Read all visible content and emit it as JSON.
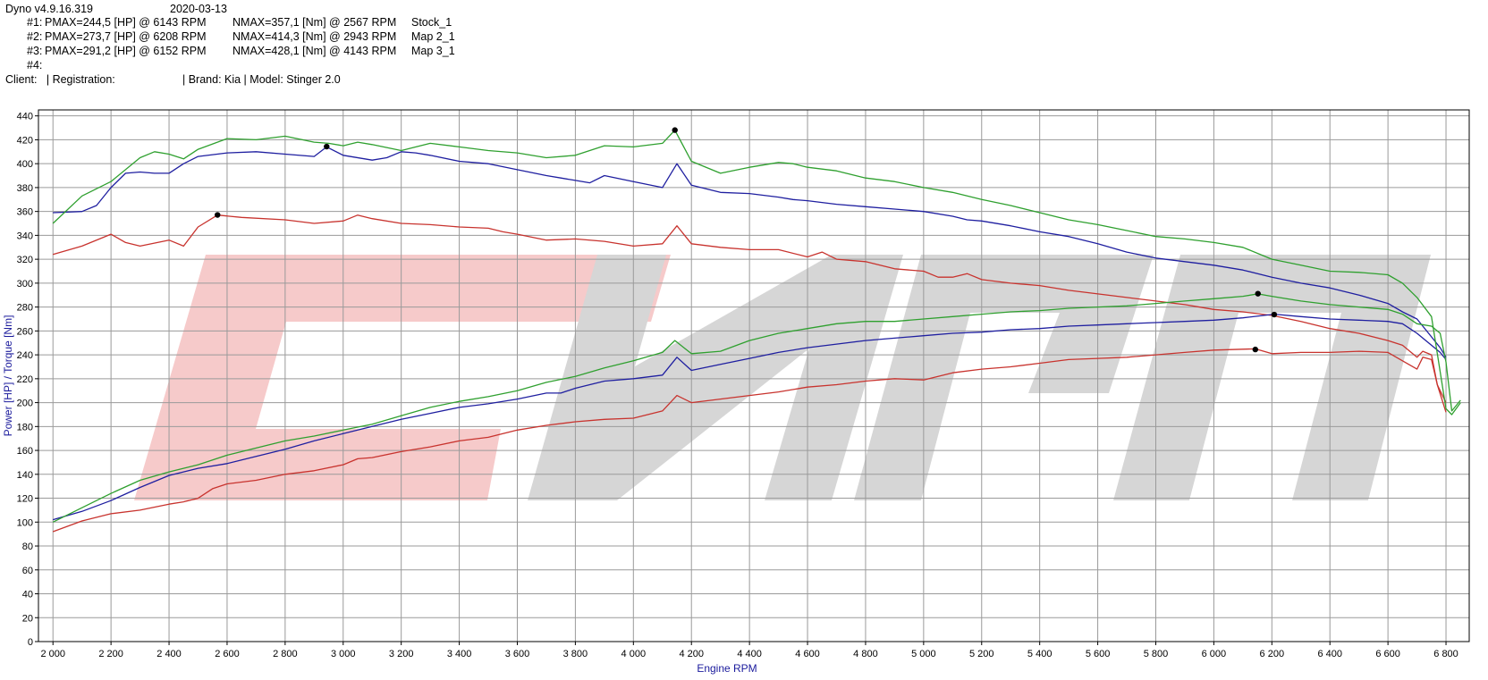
{
  "header": {
    "app_version": "Dyno v4.9.16.319",
    "date": "2020-03-13",
    "runs": [
      {
        "id": "#1:",
        "pmax": "PMAX=244,5 [HP] @ 6143 RPM",
        "nmax": "NMAX=357,1 [Nm] @ 2567 RPM",
        "name": "Stock_1"
      },
      {
        "id": "#2:",
        "pmax": "PMAX=273,7 [HP] @ 6208 RPM",
        "nmax": "NMAX=414,3 [Nm] @ 2943 RPM",
        "name": "Map 2_1"
      },
      {
        "id": "#3:",
        "pmax": "PMAX=291,2 [HP] @ 6152 RPM",
        "nmax": "NMAX=428,1 [Nm] @ 4143 RPM",
        "name": "Map 3_1"
      },
      {
        "id": "#4:",
        "pmax": "",
        "nmax": "",
        "name": ""
      }
    ],
    "client_line": "Client:   | Registration:",
    "vehicle_line": "| Brand: Kia | Model: Stinger 2.0"
  },
  "colors": {
    "run1": "#c8332e",
    "run2": "#1f1fa0",
    "run3": "#2fa02f",
    "grid": "#9a9a9a",
    "watermark_red": "#f6caca",
    "watermark_gray": "#d6d6d6",
    "axis_title": "#1a1a9c"
  },
  "chart_data": {
    "type": "line",
    "xlabel": "Engine RPM",
    "ylabel": "Power [HP] / Torque [Nm]",
    "xlim": [
      1950,
      6880
    ],
    "ylim": [
      0,
      445
    ],
    "x_ticks": [
      2000,
      2200,
      2400,
      2600,
      2800,
      3000,
      3200,
      3400,
      3600,
      3800,
      4000,
      4200,
      4400,
      4600,
      4800,
      5000,
      5200,
      5400,
      5600,
      5800,
      6000,
      6200,
      6400,
      6600,
      6800
    ],
    "x_tick_labels": [
      "2 000",
      "2 200",
      "2 400",
      "2 600",
      "2 800",
      "3 000",
      "3 200",
      "3 400",
      "3 600",
      "3 800",
      "4 000",
      "4 200",
      "4 400",
      "4 600",
      "4 800",
      "5 000",
      "5 200",
      "5 400",
      "5 600",
      "5 800",
      "6 000",
      "6 200",
      "6 400",
      "6 600",
      "6 800"
    ],
    "y_ticks": [
      0,
      20,
      40,
      60,
      80,
      100,
      120,
      140,
      160,
      180,
      200,
      220,
      240,
      260,
      280,
      300,
      320,
      340,
      360,
      380,
      400,
      420,
      440
    ],
    "grid": true,
    "series": [
      {
        "run": "run1",
        "kind": "torque",
        "x": [
          2000,
          2100,
          2200,
          2250,
          2300,
          2400,
          2450,
          2500,
          2567,
          2650,
          2800,
          2900,
          3000,
          3050,
          3100,
          3200,
          3300,
          3400,
          3500,
          3550,
          3600,
          3700,
          3800,
          3900,
          4000,
          4100,
          4150,
          4200,
          4300,
          4400,
          4500,
          4600,
          4650,
          4700,
          4800,
          4900,
          5000,
          5050,
          5100,
          5150,
          5200,
          5300,
          5400,
          5500,
          5600,
          5700,
          5800,
          5900,
          6000,
          6100,
          6200,
          6300,
          6400,
          6500,
          6600,
          6650,
          6700,
          6720,
          6750,
          6770,
          6800
        ],
        "y": [
          324,
          331,
          341,
          334,
          331,
          336,
          331,
          347,
          357,
          355,
          353,
          350,
          352,
          357,
          354,
          350,
          349,
          347,
          346,
          343,
          341,
          336,
          337,
          335,
          331,
          333,
          348,
          333,
          330,
          328,
          328,
          322,
          326,
          320,
          318,
          312,
          310,
          305,
          305,
          308,
          303,
          300,
          298,
          294,
          291,
          288,
          285,
          282,
          278,
          276,
          273,
          268,
          262,
          258,
          252,
          248,
          238,
          243,
          240,
          215,
          200
        ]
      },
      {
        "run": "run1",
        "kind": "power",
        "x": [
          2000,
          2100,
          2200,
          2300,
          2400,
          2450,
          2500,
          2550,
          2600,
          2700,
          2800,
          2900,
          3000,
          3050,
          3100,
          3200,
          3300,
          3400,
          3500,
          3600,
          3700,
          3800,
          3900,
          4000,
          4100,
          4150,
          4200,
          4300,
          4400,
          4500,
          4600,
          4700,
          4800,
          4900,
          5000,
          5100,
          5200,
          5300,
          5400,
          5500,
          5600,
          5700,
          5800,
          5900,
          6000,
          6143,
          6200,
          6300,
          6400,
          6500,
          6600,
          6650,
          6700,
          6720,
          6750,
          6770,
          6800
        ],
        "y": [
          92,
          101,
          107,
          110,
          115,
          117,
          120,
          128,
          132,
          135,
          140,
          143,
          148,
          153,
          154,
          159,
          163,
          168,
          171,
          177,
          181,
          184,
          186,
          187,
          193,
          206,
          200,
          203,
          206,
          209,
          213,
          215,
          218,
          220,
          219,
          225,
          228,
          230,
          233,
          236,
          237,
          238,
          240,
          242,
          244,
          245,
          241,
          242,
          242,
          243,
          242,
          235,
          228,
          238,
          236,
          215,
          192
        ]
      },
      {
        "run": "run2",
        "kind": "torque",
        "x": [
          2000,
          2100,
          2150,
          2200,
          2250,
          2300,
          2350,
          2400,
          2450,
          2500,
          2600,
          2700,
          2800,
          2900,
          2943,
          3000,
          3100,
          3150,
          3200,
          3250,
          3300,
          3400,
          3500,
          3600,
          3700,
          3750,
          3800,
          3850,
          3900,
          4000,
          4100,
          4150,
          4200,
          4300,
          4400,
          4500,
          4550,
          4600,
          4700,
          4800,
          4900,
          5000,
          5100,
          5150,
          5200,
          5300,
          5400,
          5500,
          5600,
          5700,
          5800,
          5900,
          6000,
          6100,
          6200,
          6300,
          6400,
          6500,
          6600,
          6650,
          6700,
          6750,
          6780,
          6800
        ],
        "y": [
          359,
          360,
          365,
          380,
          392,
          393,
          392,
          392,
          400,
          406,
          409,
          410,
          408,
          406,
          414,
          407,
          403,
          405,
          410,
          409,
          407,
          402,
          400,
          395,
          390,
          388,
          386,
          384,
          390,
          385,
          380,
          400,
          382,
          376,
          375,
          372,
          370,
          369,
          366,
          364,
          362,
          360,
          356,
          353,
          352,
          348,
          343,
          339,
          333,
          326,
          321,
          318,
          315,
          311,
          305,
          300,
          296,
          290,
          283,
          276,
          270,
          255,
          246,
          238
        ]
      },
      {
        "run": "run2",
        "kind": "power",
        "x": [
          2000,
          2100,
          2200,
          2300,
          2400,
          2500,
          2600,
          2700,
          2800,
          2900,
          3000,
          3100,
          3200,
          3300,
          3400,
          3500,
          3600,
          3700,
          3750,
          3800,
          3850,
          3900,
          4000,
          4100,
          4150,
          4200,
          4300,
          4400,
          4500,
          4600,
          4700,
          4800,
          4900,
          5000,
          5100,
          5200,
          5300,
          5400,
          5500,
          5600,
          5700,
          5800,
          5900,
          6000,
          6100,
          6208,
          6300,
          6400,
          6500,
          6600,
          6650,
          6700,
          6750,
          6780,
          6800
        ],
        "y": [
          102,
          109,
          118,
          129,
          139,
          145,
          149,
          155,
          161,
          168,
          174,
          180,
          186,
          191,
          196,
          199,
          203,
          208,
          208,
          212,
          215,
          218,
          220,
          223,
          238,
          227,
          232,
          237,
          242,
          246,
          249,
          252,
          254,
          256,
          258,
          259,
          261,
          262,
          264,
          265,
          266,
          267,
          268,
          269,
          271,
          274,
          272,
          270,
          269,
          268,
          266,
          258,
          248,
          242,
          236
        ]
      },
      {
        "run": "run3",
        "kind": "torque",
        "x": [
          2000,
          2100,
          2200,
          2300,
          2350,
          2400,
          2450,
          2500,
          2600,
          2700,
          2800,
          2900,
          2950,
          3000,
          3050,
          3100,
          3200,
          3300,
          3400,
          3500,
          3600,
          3700,
          3800,
          3900,
          4000,
          4100,
          4143,
          4200,
          4300,
          4400,
          4500,
          4550,
          4600,
          4700,
          4800,
          4900,
          5000,
          5100,
          5200,
          5300,
          5400,
          5500,
          5600,
          5700,
          5800,
          5900,
          6000,
          6100,
          6200,
          6300,
          6400,
          6500,
          6600,
          6650,
          6700,
          6750,
          6800,
          6820,
          6850
        ],
        "y": [
          350,
          373,
          385,
          405,
          410,
          408,
          404,
          412,
          421,
          420,
          423,
          418,
          417,
          415,
          418,
          416,
          411,
          417,
          414,
          411,
          409,
          405,
          407,
          415,
          414,
          417,
          428,
          402,
          392,
          397,
          401,
          400,
          397,
          394,
          388,
          385,
          380,
          376,
          370,
          365,
          359,
          353,
          349,
          344,
          339,
          337,
          334,
          330,
          320,
          315,
          310,
          309,
          307,
          300,
          288,
          272,
          195,
          190,
          200
        ]
      },
      {
        "run": "run3",
        "kind": "power",
        "x": [
          2000,
          2100,
          2200,
          2300,
          2400,
          2500,
          2600,
          2700,
          2800,
          2900,
          3000,
          3100,
          3200,
          3300,
          3400,
          3500,
          3600,
          3700,
          3800,
          3900,
          4000,
          4100,
          4143,
          4200,
          4300,
          4400,
          4500,
          4600,
          4700,
          4800,
          4900,
          5000,
          5100,
          5200,
          5300,
          5400,
          5500,
          5600,
          5700,
          5800,
          5900,
          6000,
          6100,
          6152,
          6200,
          6300,
          6400,
          6500,
          6600,
          6650,
          6700,
          6750,
          6780,
          6800,
          6820,
          6850
        ],
        "y": [
          100,
          112,
          124,
          135,
          142,
          148,
          156,
          162,
          168,
          172,
          177,
          182,
          189,
          196,
          201,
          205,
          210,
          217,
          222,
          229,
          235,
          242,
          252,
          241,
          243,
          252,
          258,
          262,
          266,
          268,
          268,
          270,
          272,
          274,
          276,
          277,
          279,
          280,
          281,
          283,
          285,
          287,
          289,
          291,
          289,
          285,
          282,
          280,
          278,
          274,
          266,
          264,
          258,
          234,
          193,
          202
        ]
      }
    ],
    "markers": [
      {
        "run": "run1",
        "kind": "torque max",
        "x": 2567,
        "y": 357.1
      },
      {
        "run": "run2",
        "kind": "torque max",
        "x": 2943,
        "y": 414.3
      },
      {
        "run": "run3",
        "kind": "torque max",
        "x": 4143,
        "y": 428.1
      },
      {
        "run": "run1",
        "kind": "power max",
        "x": 6143,
        "y": 244.5
      },
      {
        "run": "run2",
        "kind": "power max",
        "x": 6208,
        "y": 273.7
      },
      {
        "run": "run3",
        "kind": "power max",
        "x": 6152,
        "y": 291.2
      }
    ]
  }
}
